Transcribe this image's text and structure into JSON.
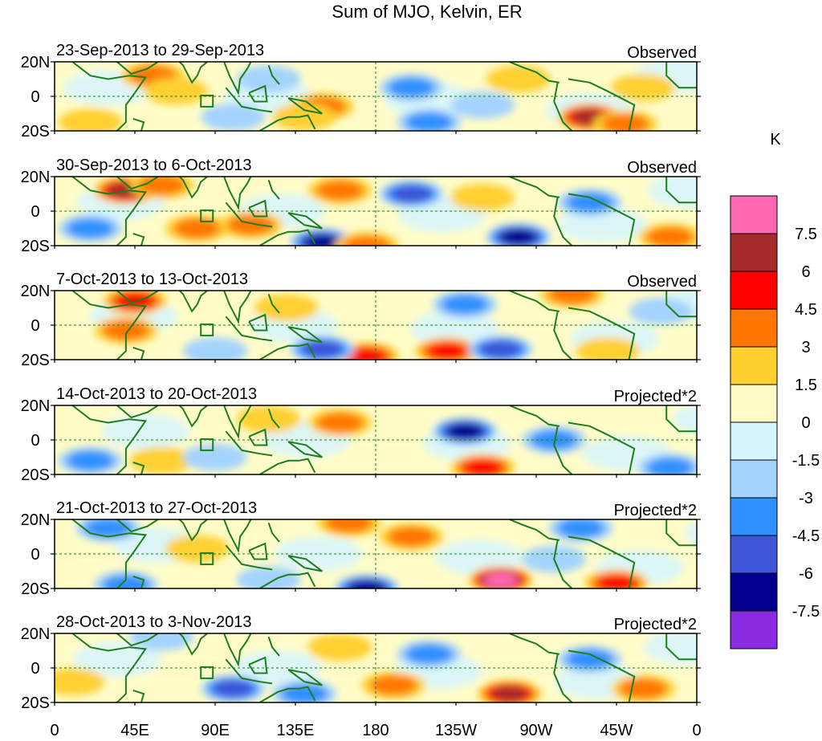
{
  "chart_data": {
    "type": "heatmap",
    "title": "Sum of MJO, Kelvin, ER",
    "units": "K",
    "x_ticks": [
      "0",
      "45E",
      "90E",
      "135E",
      "180",
      "135W",
      "90W",
      "45W",
      "0"
    ],
    "x_tick_values": [
      0,
      45,
      90,
      135,
      180,
      225,
      270,
      315,
      360
    ],
    "x_range": [
      0,
      360
    ],
    "y_ticks": [
      "20N",
      "0",
      "20S"
    ],
    "y_tick_values": [
      20,
      0,
      -20
    ],
    "y_range": [
      -20,
      20
    ],
    "colorbar": {
      "levels": [
        "7.5",
        "6",
        "4.5",
        "3",
        "1.5",
        "0",
        "-1.5",
        "-3",
        "-4.5",
        "-6",
        "-7.5"
      ],
      "colors": [
        "#ff69b4",
        "#a52a2a",
        "#ff0000",
        "#ff7700",
        "#ffd030",
        "#fffcc8",
        "#d6f6ff",
        "#a4d3ff",
        "#2f90ff",
        "#3d55d6",
        "#00008c",
        "#8a2be2"
      ]
    },
    "panels": [
      {
        "period": "23-Sep-2013 to 29-Sep-2013",
        "label": "Observed",
        "features": [
          {
            "lon": 55,
            "lat": 12,
            "value": 3
          },
          {
            "lon": 68,
            "lat": 3,
            "value": 2
          },
          {
            "lon": 150,
            "lat": -6,
            "value": 4
          },
          {
            "lon": 140,
            "lat": -12,
            "value": 2
          },
          {
            "lon": 300,
            "lat": -12,
            "value": 6
          },
          {
            "lon": 320,
            "lat": -16,
            "value": 3
          },
          {
            "lon": 260,
            "lat": 10,
            "value": 2.5
          },
          {
            "lon": 330,
            "lat": 5,
            "value": 1.5
          },
          {
            "lon": 20,
            "lat": -15,
            "value": 2
          },
          {
            "lon": 100,
            "lat": -12,
            "value": -2
          },
          {
            "lon": 200,
            "lat": 5,
            "value": -3
          },
          {
            "lon": 240,
            "lat": -5,
            "value": -2.5
          },
          {
            "lon": 120,
            "lat": 10,
            "value": -2
          },
          {
            "lon": 210,
            "lat": -15,
            "value": -3
          }
        ]
      },
      {
        "period": "30-Sep-2013 to 6-Oct-2013",
        "label": "Observed",
        "features": [
          {
            "lon": 40,
            "lat": 12,
            "value": 6
          },
          {
            "lon": 60,
            "lat": 15,
            "value": 3
          },
          {
            "lon": 80,
            "lat": -10,
            "value": 4
          },
          {
            "lon": 110,
            "lat": -8,
            "value": 3
          },
          {
            "lon": 160,
            "lat": 12,
            "value": 3
          },
          {
            "lon": 240,
            "lat": 8,
            "value": 2
          },
          {
            "lon": 345,
            "lat": -15,
            "value": 4
          },
          {
            "lon": 20,
            "lat": -10,
            "value": -4
          },
          {
            "lon": 150,
            "lat": -18,
            "value": -6
          },
          {
            "lon": 260,
            "lat": -15,
            "value": -7
          },
          {
            "lon": 200,
            "lat": 10,
            "value": -5
          },
          {
            "lon": 300,
            "lat": 5,
            "value": -3
          },
          {
            "lon": 175,
            "lat": -20,
            "value": 4
          }
        ]
      },
      {
        "period": "7-Oct-2013 to 13-Oct-2013",
        "label": "Observed",
        "features": [
          {
            "lon": 45,
            "lat": 14,
            "value": 4.5
          },
          {
            "lon": 40,
            "lat": -3,
            "value": 3
          },
          {
            "lon": 130,
            "lat": 10,
            "value": 2.5
          },
          {
            "lon": 175,
            "lat": -18,
            "value": 5
          },
          {
            "lon": 220,
            "lat": -15,
            "value": 4.5
          },
          {
            "lon": 310,
            "lat": -15,
            "value": 2
          },
          {
            "lon": 290,
            "lat": 18,
            "value": 3
          },
          {
            "lon": 150,
            "lat": -14,
            "value": -5
          },
          {
            "lon": 250,
            "lat": -14,
            "value": -5.5
          },
          {
            "lon": 230,
            "lat": 12,
            "value": -3.5
          },
          {
            "lon": 90,
            "lat": -15,
            "value": -2
          },
          {
            "lon": 340,
            "lat": 8,
            "value": -2
          }
        ]
      },
      {
        "period": "14-Oct-2013 to 20-Oct-2013",
        "label": "Projected*2",
        "features": [
          {
            "lon": 120,
            "lat": 12,
            "value": 2
          },
          {
            "lon": 160,
            "lat": 10,
            "value": 3
          },
          {
            "lon": 240,
            "lat": -16,
            "value": 5
          },
          {
            "lon": 60,
            "lat": -12,
            "value": 2.5
          },
          {
            "lon": 20,
            "lat": -12,
            "value": -3
          },
          {
            "lon": 230,
            "lat": 5,
            "value": -6.5
          },
          {
            "lon": 280,
            "lat": 0,
            "value": -4
          },
          {
            "lon": 345,
            "lat": -16,
            "value": -4
          },
          {
            "lon": 90,
            "lat": -10,
            "value": -2
          }
        ]
      },
      {
        "period": "21-Oct-2013 to 27-Oct-2013",
        "label": "Projected*2",
        "features": [
          {
            "lon": 250,
            "lat": -15,
            "value": 8
          },
          {
            "lon": 315,
            "lat": -17,
            "value": 5
          },
          {
            "lon": 165,
            "lat": 18,
            "value": 4
          },
          {
            "lon": 200,
            "lat": 10,
            "value": 3
          },
          {
            "lon": 80,
            "lat": 3,
            "value": 2
          },
          {
            "lon": 30,
            "lat": 15,
            "value": -4
          },
          {
            "lon": 40,
            "lat": -18,
            "value": -4
          },
          {
            "lon": 175,
            "lat": -20,
            "value": -6
          },
          {
            "lon": 120,
            "lat": -15,
            "value": -2.5
          },
          {
            "lon": 295,
            "lat": 15,
            "value": -3
          },
          {
            "lon": 280,
            "lat": -3,
            "value": -2
          }
        ]
      },
      {
        "period": "28-Oct-2013 to 3-Nov-2013",
        "label": "Projected*2",
        "features": [
          {
            "lon": 255,
            "lat": -15,
            "value": 6.5
          },
          {
            "lon": 190,
            "lat": -10,
            "value": 4
          },
          {
            "lon": 330,
            "lat": -12,
            "value": 3
          },
          {
            "lon": 10,
            "lat": -8,
            "value": 2.5
          },
          {
            "lon": 60,
            "lat": 18,
            "value": -2.5
          },
          {
            "lon": 100,
            "lat": -12,
            "value": -5
          },
          {
            "lon": 140,
            "lat": -15,
            "value": -3
          },
          {
            "lon": 210,
            "lat": 8,
            "value": -3
          },
          {
            "lon": 300,
            "lat": 5,
            "value": -3
          },
          {
            "lon": 160,
            "lat": 12,
            "value": 2
          }
        ]
      }
    ]
  }
}
